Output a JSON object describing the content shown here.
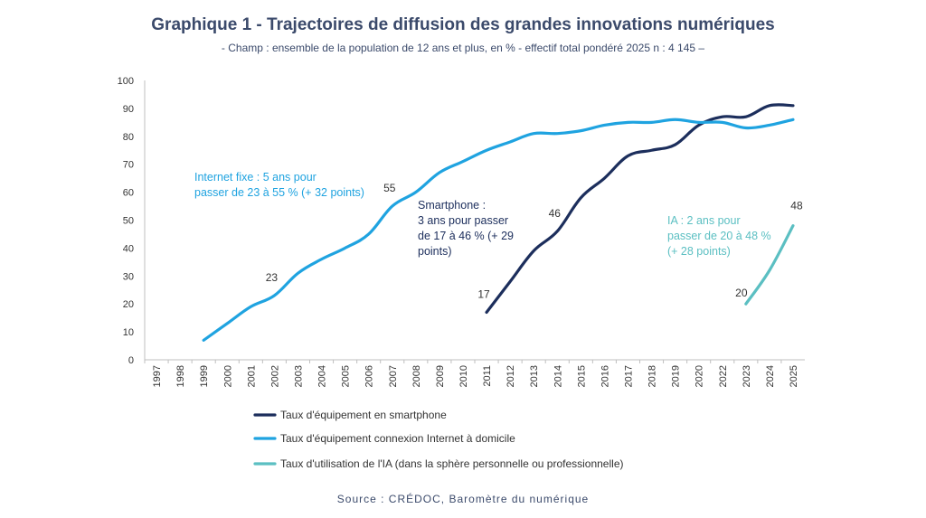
{
  "title": "Graphique 1 - Trajectoires de diffusion des grandes innovations numériques",
  "subtitle": "- Champ : ensemble de la population de 12 ans et plus, en % - effectif total pondéré 2025 n : 4 145 –",
  "source": "Source : CRÉDOC, Baromètre du numérique",
  "colors": {
    "smartphone": "#1c2e5c",
    "internet": "#1fa3e0",
    "ia": "#5bbfc2"
  },
  "chart_data": {
    "type": "line",
    "x": [
      "1997",
      "1998",
      "1999",
      "2000",
      "2001",
      "2002",
      "2003",
      "2004",
      "2005",
      "2006",
      "2007",
      "2008",
      "2009",
      "2010",
      "2011",
      "2012",
      "2013",
      "2014",
      "2015",
      "2016",
      "2017",
      "2018",
      "2019",
      "2020",
      "2022",
      "2023",
      "2024",
      "2025"
    ],
    "ylim": [
      0,
      100
    ],
    "yticks": [
      0,
      10,
      20,
      30,
      40,
      50,
      60,
      70,
      80,
      90,
      100
    ],
    "grid": false,
    "legend_position": "bottom",
    "series": [
      {
        "key": "smartphone",
        "name": "Taux d'équipement en smartphone",
        "values": [
          null,
          null,
          null,
          null,
          null,
          null,
          null,
          null,
          null,
          null,
          null,
          null,
          null,
          null,
          17,
          28,
          39,
          46,
          58,
          65,
          73,
          75,
          77,
          84,
          87,
          87,
          91,
          91
        ]
      },
      {
        "key": "internet",
        "name": "Taux d'équipement connexion Internet à domicile",
        "values": [
          null,
          null,
          7,
          13,
          19,
          23,
          31,
          36,
          40,
          45,
          55,
          60,
          67,
          71,
          75,
          78,
          81,
          81,
          82,
          84,
          85,
          85,
          86,
          85,
          85,
          83,
          84,
          86
        ]
      },
      {
        "key": "ia",
        "name": "Taux d'utilisation de l'IA (dans la sphère personnelle ou professionnelle)",
        "values": [
          null,
          null,
          null,
          null,
          null,
          null,
          null,
          null,
          null,
          null,
          null,
          null,
          null,
          null,
          null,
          null,
          null,
          null,
          null,
          null,
          null,
          null,
          null,
          null,
          null,
          20,
          32,
          48
        ]
      }
    ],
    "data_labels": [
      {
        "text": "23",
        "series": "internet",
        "x": "2002"
      },
      {
        "text": "55",
        "series": "internet",
        "x": "2007"
      },
      {
        "text": "17",
        "series": "smartphone",
        "x": "2011"
      },
      {
        "text": "46",
        "series": "smartphone",
        "x": "2014"
      },
      {
        "text": "20",
        "series": "ia",
        "x": "2023"
      },
      {
        "text": "48",
        "series": "ia",
        "x": "2025"
      }
    ],
    "annotations": [
      {
        "series": "internet",
        "lines": [
          "Internet fixe : 5 ans pour",
          "passer de 23 à 55 % (+ 32 points)"
        ]
      },
      {
        "series": "smartphone",
        "lines": [
          "Smartphone :",
          "3 ans pour passer",
          "de 17 à 46 % (+ 29",
          "points)"
        ]
      },
      {
        "series": "ia",
        "lines": [
          "IA : 2 ans pour",
          "passer de 20 à 48 %",
          "(+ 28 points)"
        ]
      }
    ]
  }
}
